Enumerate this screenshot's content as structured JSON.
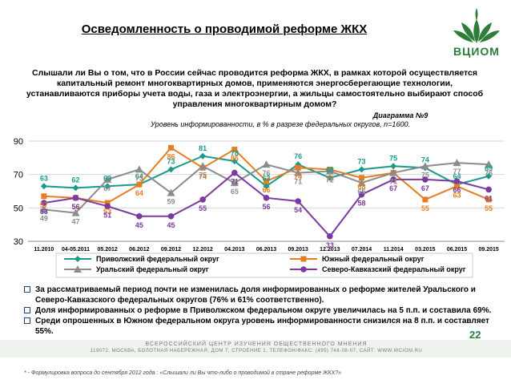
{
  "title": "Осведомленность о проводимой реформе ЖКХ",
  "logo_text": "ВЦИОМ",
  "question": "Слышали ли Вы о том, что в России сейчас проводится реформа ЖКХ, в рамках которой осуществляется капитальный ремонт многоквартирных домов, применяются энергосберегающие технологии, устанавливаются приборы учета воды, газа и электроэнергии, а жильцы самостоятельно выбирают способ управления многоквартирным домом?",
  "diagram_label": "Диаграмма №9",
  "diagram_subtitle": "Уровень информированности, в % в разрезе федеральных округов, n=1600.",
  "colors": {
    "volga": "#1a9a8a",
    "south": "#e67e22",
    "ural": "#8c8c8c",
    "caucasus": "#7b3aa0",
    "brand_green": "#2e7d3a"
  },
  "chart_data": {
    "type": "line",
    "categories": [
      "11.2010",
      "04-05.2011",
      "05.2012",
      "06.2012",
      "09.2012",
      "12.2012",
      "04.2013",
      "06.2013",
      "09.2013",
      "12.2013",
      "07.2014",
      "11.2014",
      "03.2015",
      "06.2015",
      "09.2015"
    ],
    "ylim": [
      30,
      90
    ],
    "yticks": [
      30,
      50,
      70,
      90
    ],
    "series": [
      {
        "name": "Приволжский федеральный округ",
        "color_key": "volga",
        "marker": "diamond",
        "values": [
          63,
          62,
          63,
          64,
          73,
          81,
          78,
          63,
          76,
          68,
          73,
          75,
          74,
          64,
          69
        ]
      },
      {
        "name": "Южный федеральный округ",
        "color_key": "south",
        "marker": "square",
        "values": [
          57,
          56,
          53,
          64,
          86,
          74,
          85,
          66,
          74,
          73,
          68,
          71,
          55,
          63,
          55
        ]
      },
      {
        "name": "Уральский федеральный округ",
        "color_key": "ural",
        "marker": "triangle",
        "values": [
          49,
          47,
          67,
          73,
          59,
          75,
          65,
          76,
          71,
          72,
          65,
          71,
          75,
          77,
          76
        ]
      },
      {
        "name": "Северо-Кавказский федеральный округ",
        "color_key": "caucasus",
        "marker": "circle",
        "values": [
          53,
          56,
          51,
          45,
          45,
          55,
          71,
          56,
          54,
          33,
          58,
          67,
          67,
          66,
          61
        ]
      }
    ]
  },
  "bullets": [
    "За рассматриваемый период почти не изменилась доля информированных о реформе жителей Уральского и Северо-Кавказского федеральных округов (76% и 61% соответственно).",
    "Доля информированных о реформе в Приволжском федеральном округе увеличилась на 5 п.п. и составила 69%.",
    "Среди опрошенных в Южном федеральном округа уровень информированности снизился на 8 п.п. и составляет 55%."
  ],
  "page_number": "22",
  "footer_line1": "ВСЕРОССИЙСКИЙ ЦЕНТР ИЗУЧЕНИЯ ОБЩЕСТВЕННОГО МНЕНИЯ",
  "footer_line2": "119072, МОСКВА, БОЛОТНАЯ НАБЕРЕЖНАЯ, ДОМ 7, СТРОЕНИЕ 1, ТЕЛЕФОН/ФАКС: (495) 748-08-07, САЙТ: WWW.WCIOM.RU",
  "footnote": "* - Формулировка вопроса до сентября 2012 года : «Слышали ли Вы что-либо о проводимой в стране реформе ЖКХ?»"
}
